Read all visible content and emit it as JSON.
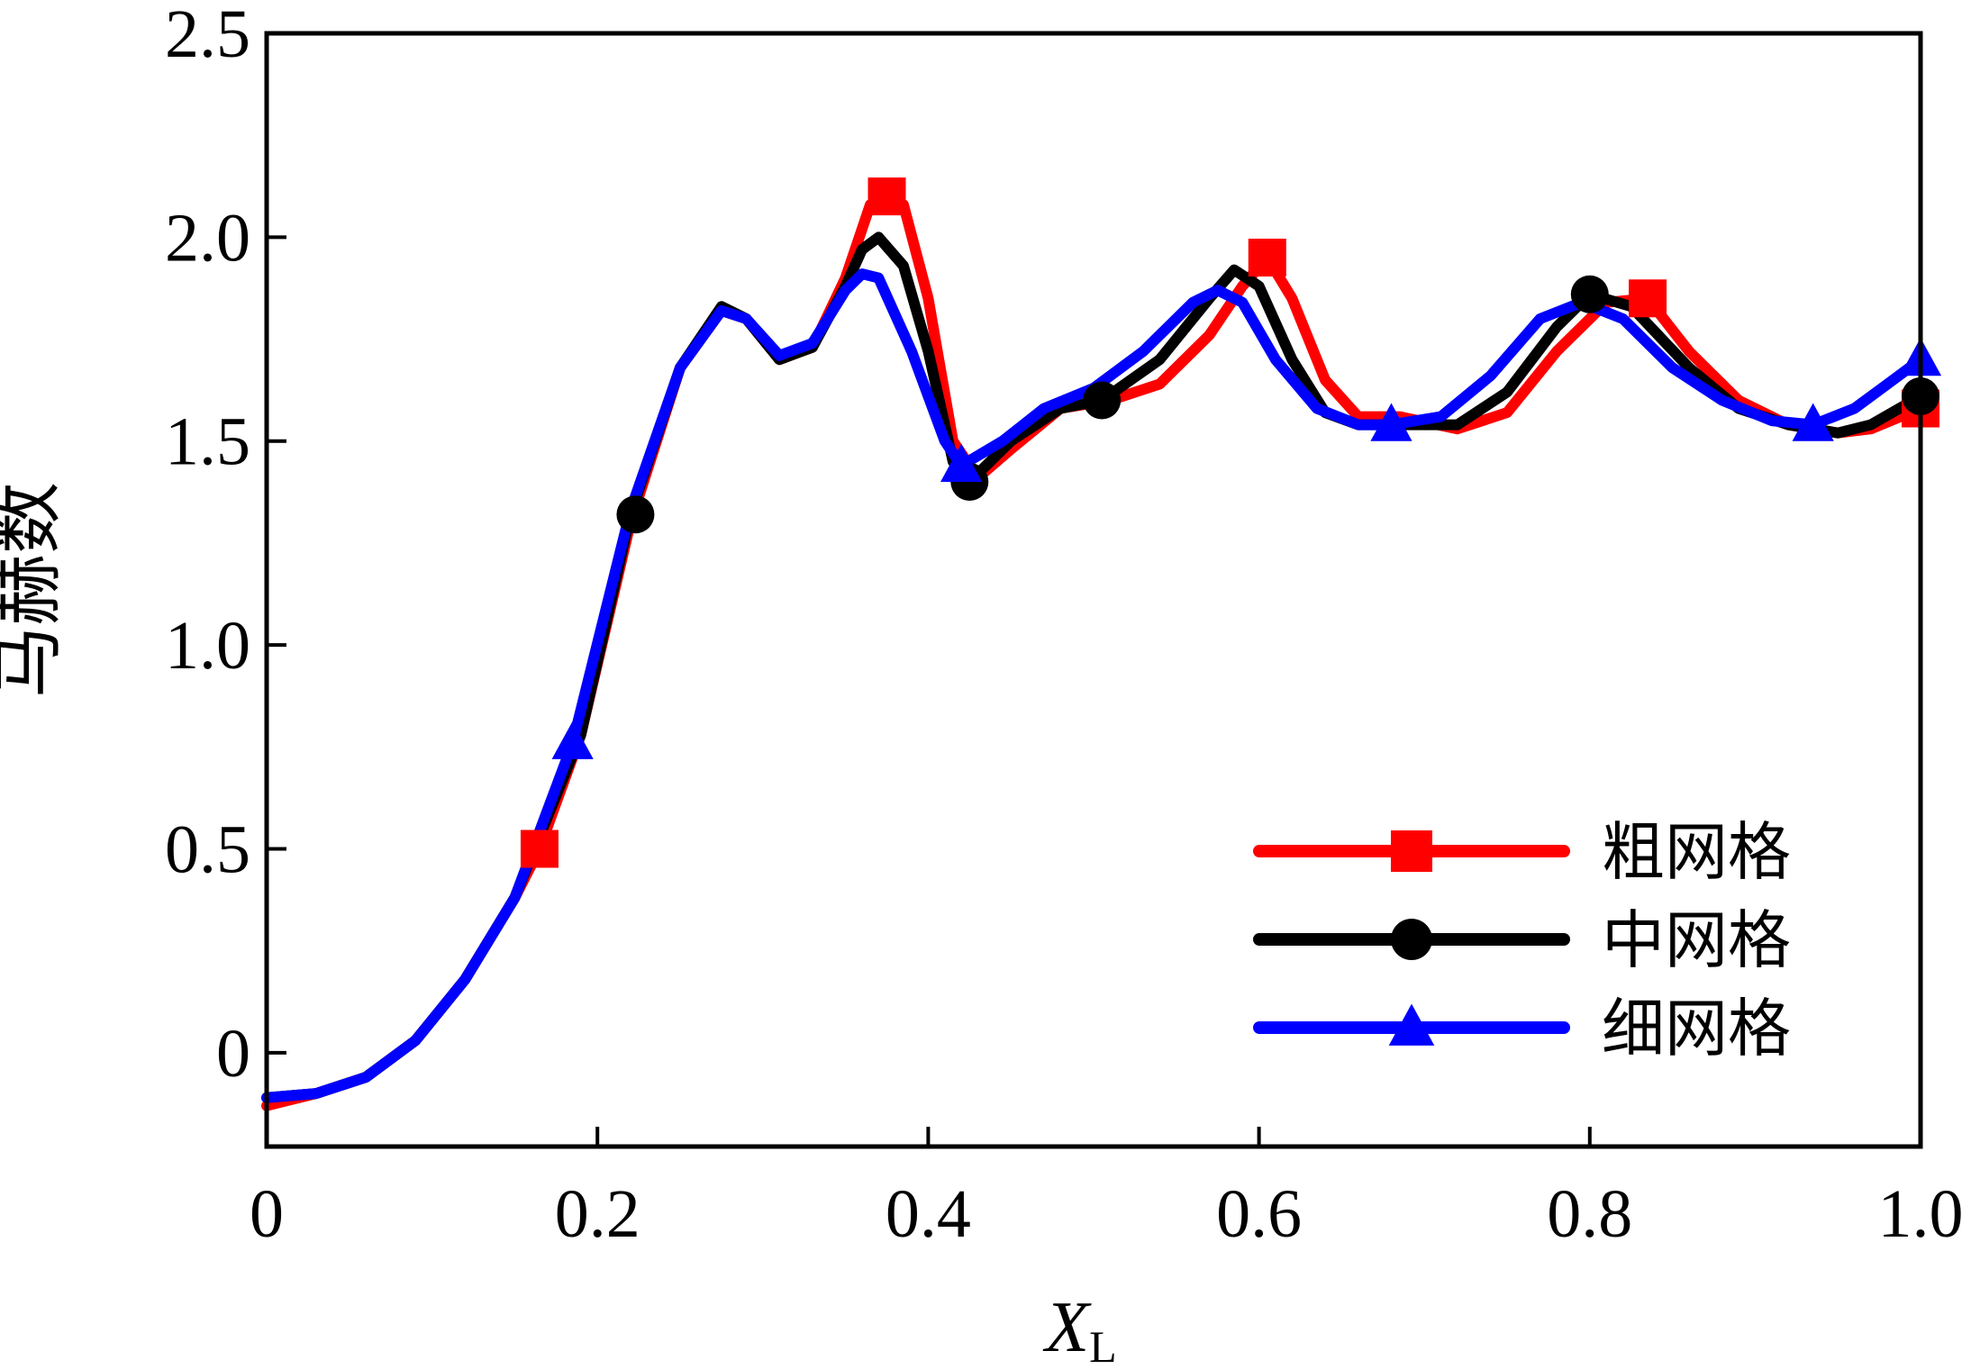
{
  "chart_data": {
    "type": "line",
    "xlabel": "X",
    "xlabel_subscript": "L",
    "ylabel": "马赫数",
    "xlim": [
      0,
      1.0
    ],
    "ylim": [
      -0.23,
      2.5
    ],
    "xticks": [
      {
        "value": 0,
        "label": "0"
      },
      {
        "value": 0.2,
        "label": "0.2"
      },
      {
        "value": 0.4,
        "label": "0.4"
      },
      {
        "value": 0.6,
        "label": "0.6"
      },
      {
        "value": 0.8,
        "label": "0.8"
      },
      {
        "value": 1.0,
        "label": "1.0"
      }
    ],
    "yticks": [
      {
        "value": 0,
        "label": "0"
      },
      {
        "value": 0.5,
        "label": "0.5"
      },
      {
        "value": 1.0,
        "label": "1.0"
      },
      {
        "value": 1.5,
        "label": "1.5"
      },
      {
        "value": 2.0,
        "label": "2.0"
      },
      {
        "value": 2.5,
        "label": "2.5"
      }
    ],
    "grid": false,
    "legend_position": "bottom-right",
    "series": [
      {
        "name": "粗网格",
        "color": "#ff0000",
        "marker": "square",
        "x": [
          0,
          0.03,
          0.06,
          0.09,
          0.12,
          0.15,
          0.165,
          0.19,
          0.22,
          0.25,
          0.275,
          0.29,
          0.31,
          0.33,
          0.35,
          0.365,
          0.375,
          0.385,
          0.4,
          0.415,
          0.43,
          0.45,
          0.48,
          0.51,
          0.54,
          0.57,
          0.59,
          0.605,
          0.62,
          0.64,
          0.66,
          0.685,
          0.72,
          0.75,
          0.78,
          0.81,
          0.835,
          0.86,
          0.89,
          0.92,
          0.95,
          0.97,
          1.0
        ],
        "y": [
          -0.13,
          -0.1,
          -0.06,
          0.03,
          0.18,
          0.38,
          0.5,
          0.78,
          1.3,
          1.68,
          1.82,
          1.8,
          1.7,
          1.73,
          1.9,
          2.08,
          2.1,
          2.08,
          1.85,
          1.5,
          1.41,
          1.48,
          1.58,
          1.6,
          1.64,
          1.76,
          1.88,
          1.95,
          1.85,
          1.65,
          1.56,
          1.56,
          1.53,
          1.57,
          1.72,
          1.84,
          1.85,
          1.72,
          1.6,
          1.54,
          1.52,
          1.53,
          1.58
        ]
      },
      {
        "name": "中网格",
        "color": "#000000",
        "marker": "circle",
        "x": [
          0,
          0.03,
          0.06,
          0.09,
          0.12,
          0.15,
          0.19,
          0.22,
          0.25,
          0.275,
          0.29,
          0.31,
          0.33,
          0.35,
          0.36,
          0.37,
          0.385,
          0.4,
          0.415,
          0.425,
          0.45,
          0.48,
          0.505,
          0.54,
          0.57,
          0.585,
          0.6,
          0.62,
          0.64,
          0.66,
          0.685,
          0.72,
          0.75,
          0.78,
          0.8,
          0.825,
          0.86,
          0.89,
          0.92,
          0.95,
          0.97,
          1.0
        ],
        "y": [
          -0.11,
          -0.1,
          -0.06,
          0.03,
          0.18,
          0.38,
          0.78,
          1.32,
          1.68,
          1.83,
          1.8,
          1.7,
          1.73,
          1.88,
          1.97,
          2.0,
          1.93,
          1.72,
          1.45,
          1.4,
          1.5,
          1.58,
          1.6,
          1.7,
          1.85,
          1.92,
          1.88,
          1.7,
          1.57,
          1.54,
          1.54,
          1.54,
          1.62,
          1.78,
          1.86,
          1.83,
          1.68,
          1.58,
          1.54,
          1.52,
          1.54,
          1.61
        ]
      },
      {
        "name": "细网格",
        "color": "#0000ff",
        "marker": "triangle",
        "x": [
          0,
          0.03,
          0.06,
          0.09,
          0.12,
          0.15,
          0.185,
          0.22,
          0.25,
          0.275,
          0.29,
          0.31,
          0.33,
          0.35,
          0.36,
          0.37,
          0.39,
          0.41,
          0.42,
          0.445,
          0.47,
          0.5,
          0.53,
          0.56,
          0.575,
          0.59,
          0.61,
          0.635,
          0.66,
          0.68,
          0.71,
          0.74,
          0.77,
          0.795,
          0.82,
          0.85,
          0.88,
          0.91,
          0.935,
          0.96,
          0.98,
          1.0
        ],
        "y": [
          -0.11,
          -0.1,
          -0.06,
          0.03,
          0.18,
          0.38,
          0.76,
          1.33,
          1.68,
          1.82,
          1.8,
          1.71,
          1.74,
          1.87,
          1.91,
          1.9,
          1.72,
          1.5,
          1.44,
          1.5,
          1.58,
          1.63,
          1.72,
          1.84,
          1.87,
          1.84,
          1.7,
          1.58,
          1.54,
          1.54,
          1.56,
          1.66,
          1.8,
          1.84,
          1.8,
          1.68,
          1.6,
          1.55,
          1.54,
          1.58,
          1.64,
          1.7
        ]
      }
    ],
    "marker_points": [
      {
        "series": 0,
        "x": 0.165,
        "y": 0.5
      },
      {
        "series": 0,
        "x": 0.375,
        "y": 2.1
      },
      {
        "series": 0,
        "x": 0.605,
        "y": 1.95
      },
      {
        "series": 0,
        "x": 0.835,
        "y": 1.85
      },
      {
        "series": 0,
        "x": 1.0,
        "y": 1.58
      },
      {
        "series": 1,
        "x": 0.223,
        "y": 1.32
      },
      {
        "series": 1,
        "x": 0.425,
        "y": 1.4
      },
      {
        "series": 1,
        "x": 0.505,
        "y": 1.6
      },
      {
        "series": 1,
        "x": 0.8,
        "y": 1.86
      },
      {
        "series": 1,
        "x": 1.0,
        "y": 1.61
      },
      {
        "series": 2,
        "x": 0.185,
        "y": 0.76
      },
      {
        "series": 2,
        "x": 0.42,
        "y": 1.44
      },
      {
        "series": 2,
        "x": 0.68,
        "y": 1.54
      },
      {
        "series": 2,
        "x": 0.935,
        "y": 1.54
      },
      {
        "series": 2,
        "x": 1.0,
        "y": 1.7
      }
    ]
  }
}
